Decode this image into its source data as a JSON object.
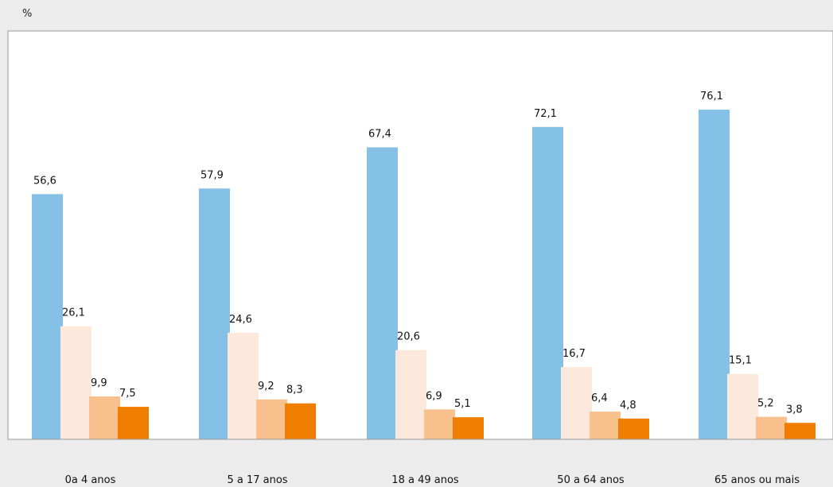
{
  "chart_data": {
    "type": "bar",
    "unit": "%",
    "categories": [
      "0a 4 anos",
      "5 a 17 anos",
      "18 a 49 anos",
      "50 a 64 anos",
      "65 anos ou mais"
    ],
    "series": [
      {
        "values": [
          56.6,
          57.9,
          67.4,
          72.1,
          76.1
        ],
        "labels": [
          "56,6",
          "57,9",
          "67,4",
          "72,1",
          "76,1"
        ],
        "color": "#85c1e6"
      },
      {
        "values": [
          26.1,
          24.6,
          20.6,
          16.7,
          15.1
        ],
        "labels": [
          "26,1",
          "24,6",
          "20,6",
          "16,7",
          "15,1"
        ],
        "color": "#fde9dc"
      },
      {
        "values": [
          9.9,
          9.2,
          6.9,
          6.4,
          5.2
        ],
        "labels": [
          "9,9",
          "9,2",
          "6,9",
          "6,4",
          "5,2"
        ],
        "color": "#f8c08c"
      },
      {
        "values": [
          7.5,
          8.3,
          5.1,
          4.8,
          3.8
        ],
        "labels": [
          "7,5",
          "8,3",
          "5,1",
          "4,8",
          "3,8"
        ],
        "color": "#ee7d00"
      }
    ],
    "ylim": [
      0,
      76.1
    ],
    "grid": false,
    "legend": "none"
  },
  "colors": {
    "plot_background": "#ffffff",
    "page_background": "#ececec",
    "axis": "#999999"
  }
}
